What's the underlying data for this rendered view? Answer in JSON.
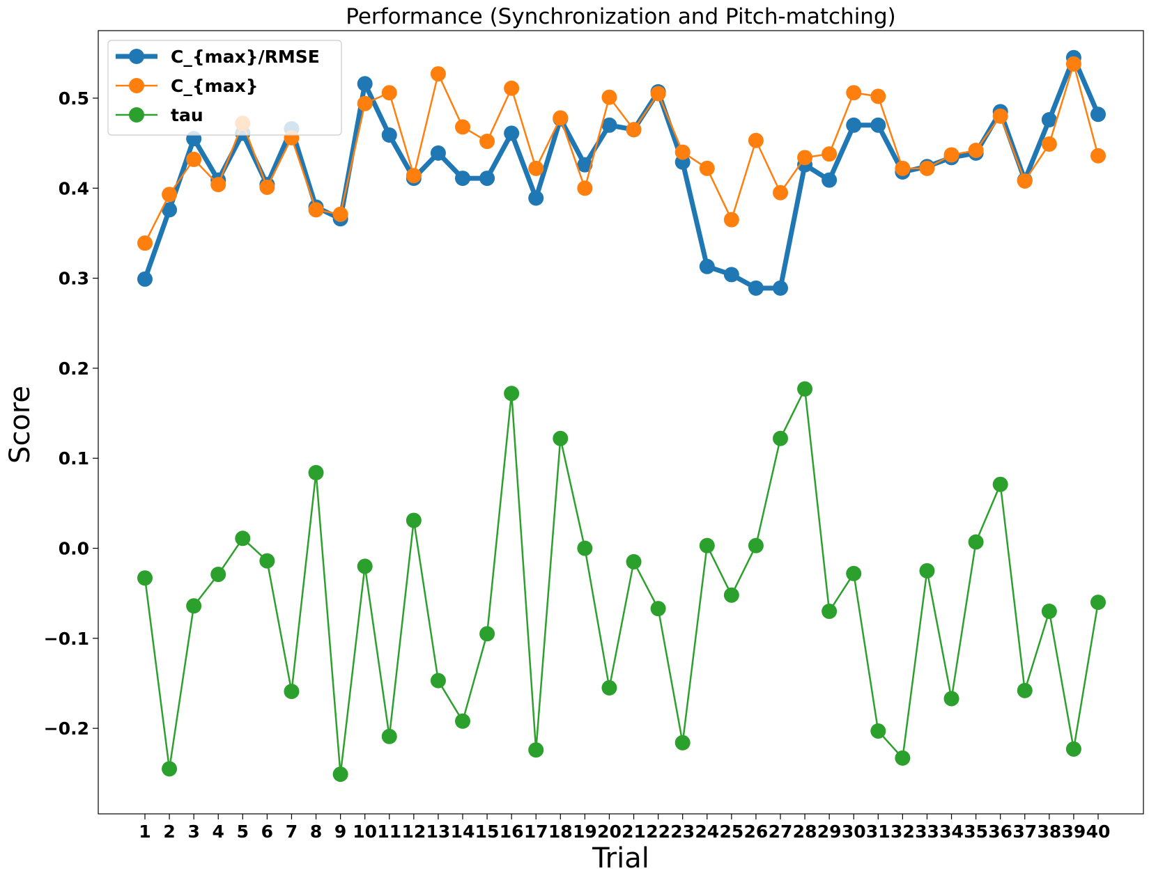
{
  "chart_data": {
    "type": "line",
    "title": "Performance (Synchronization and Pitch-matching)",
    "xlabel": "Trial",
    "ylabel": "Score",
    "x": [
      1,
      2,
      3,
      4,
      5,
      6,
      7,
      8,
      9,
      10,
      11,
      12,
      13,
      14,
      15,
      16,
      17,
      18,
      19,
      20,
      21,
      22,
      23,
      24,
      25,
      26,
      27,
      28,
      29,
      30,
      31,
      32,
      33,
      34,
      35,
      36,
      37,
      38,
      39,
      40
    ],
    "ylim": [
      -0.295,
      0.575
    ],
    "yticks": [
      -0.2,
      -0.1,
      0.0,
      0.1,
      0.2,
      0.3,
      0.4,
      0.5
    ],
    "ytick_labels": [
      "−0.2",
      "−0.1",
      "0.0",
      "0.1",
      "0.2",
      "0.3",
      "0.4",
      "0.5"
    ],
    "legend_position": "upper-left",
    "grid": false,
    "series": [
      {
        "name": "C_{max}/RMSE",
        "color": "#1f77b4",
        "values": [
          0.299,
          0.376,
          0.455,
          0.409,
          0.461,
          0.404,
          0.466,
          0.379,
          0.366,
          0.516,
          0.459,
          0.411,
          0.439,
          0.411,
          0.411,
          0.461,
          0.389,
          0.477,
          0.426,
          0.47,
          0.465,
          0.507,
          0.429,
          0.313,
          0.304,
          0.289,
          0.289,
          0.426,
          0.409,
          0.47,
          0.47,
          0.418,
          0.424,
          0.434,
          0.439,
          0.485,
          0.409,
          0.476,
          0.545,
          0.482
        ]
      },
      {
        "name": "C_{max}",
        "color": "#ff7f0e",
        "values": [
          0.339,
          0.393,
          0.432,
          0.404,
          0.472,
          0.401,
          0.456,
          0.376,
          0.371,
          0.494,
          0.506,
          0.414,
          0.527,
          0.468,
          0.452,
          0.511,
          0.422,
          0.478,
          0.4,
          0.501,
          0.465,
          0.505,
          0.44,
          0.422,
          0.365,
          0.453,
          0.395,
          0.434,
          0.438,
          0.506,
          0.502,
          0.422,
          0.422,
          0.437,
          0.442,
          0.48,
          0.408,
          0.449,
          0.538,
          0.436
        ]
      },
      {
        "name": "tau",
        "color": "#2ca02c",
        "values": [
          -0.033,
          -0.245,
          -0.064,
          -0.029,
          0.011,
          -0.014,
          -0.159,
          0.084,
          -0.251,
          -0.02,
          -0.209,
          0.031,
          -0.147,
          -0.192,
          -0.095,
          0.172,
          -0.224,
          0.122,
          0.0,
          -0.155,
          -0.015,
          -0.067,
          -0.216,
          0.003,
          -0.052,
          0.003,
          0.122,
          0.177,
          -0.07,
          -0.028,
          -0.203,
          -0.233,
          -0.025,
          -0.167,
          0.007,
          0.071,
          -0.158,
          -0.07,
          -0.223,
          -0.06
        ]
      }
    ]
  }
}
